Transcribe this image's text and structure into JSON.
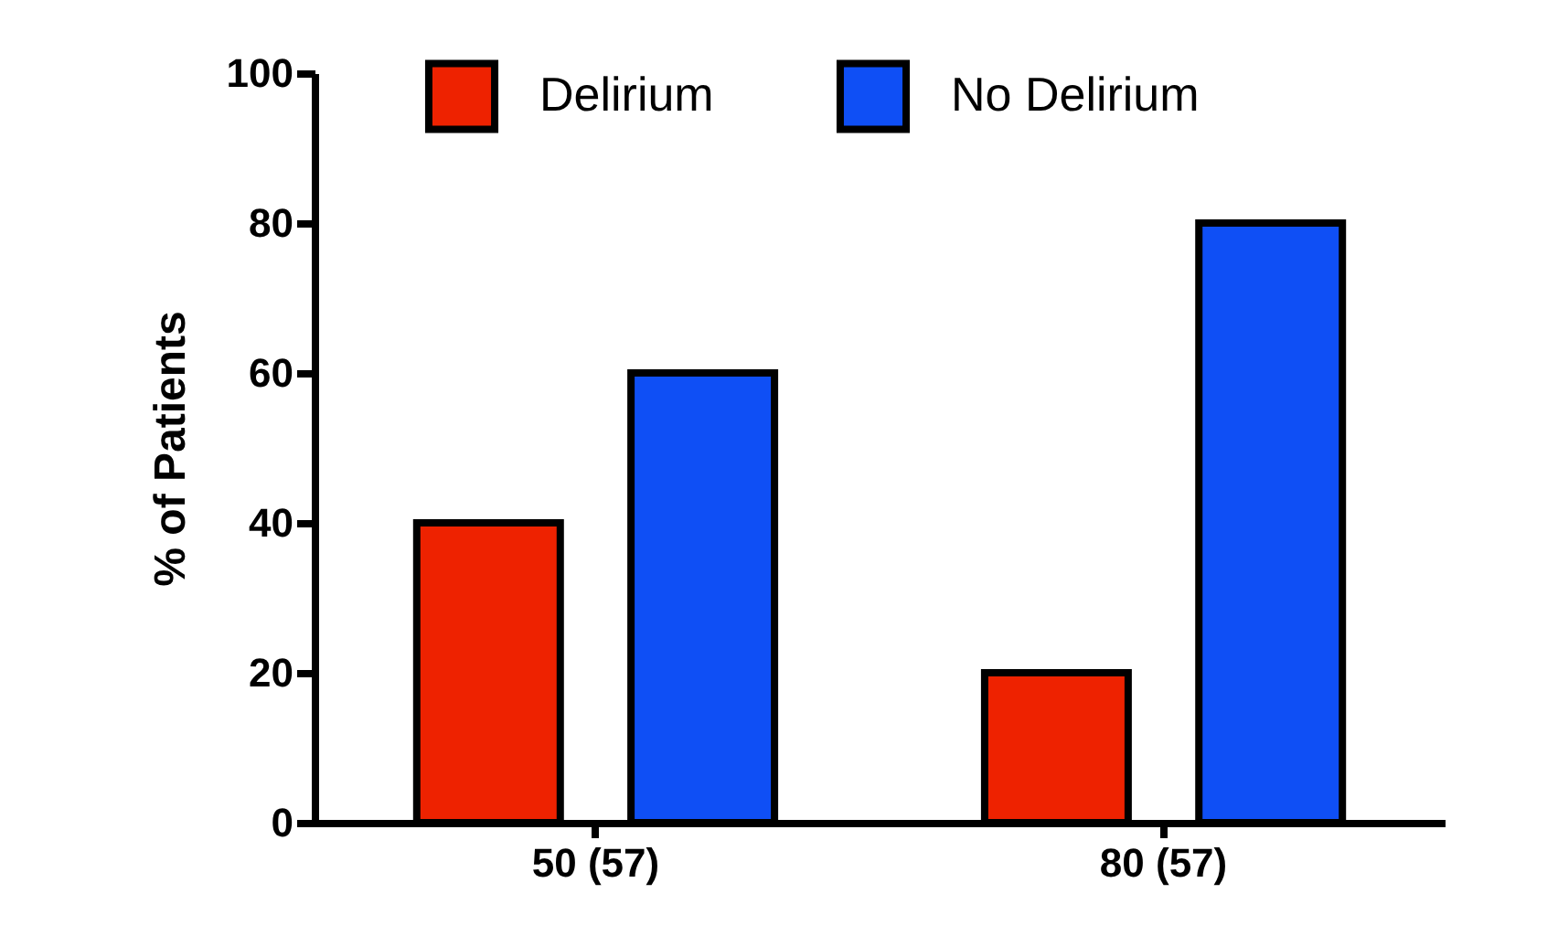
{
  "chart_data": {
    "type": "bar",
    "ylabel": "% of Patients",
    "categories": [
      "50 (57)",
      "80 (57)"
    ],
    "series": [
      {
        "name": "Delirium",
        "color": "#ee2200",
        "values": [
          40,
          20
        ]
      },
      {
        "name": "No Delirium",
        "color": "#0f4ff5",
        "values": [
          60,
          80
        ]
      }
    ],
    "ylim": [
      0,
      100
    ],
    "yticks": [
      0,
      20,
      40,
      60,
      80,
      100
    ],
    "legend": "top",
    "grid": false
  }
}
